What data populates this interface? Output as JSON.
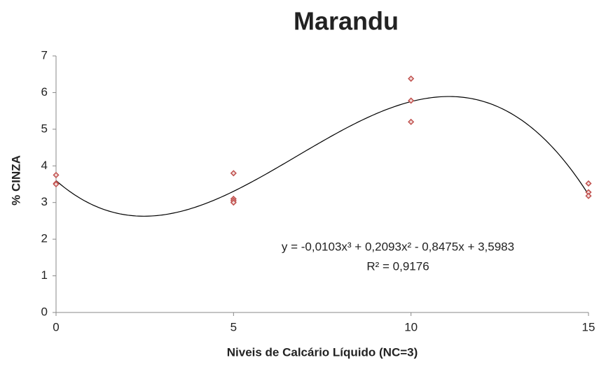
{
  "chart_data": {
    "type": "scatter",
    "title": "Marandu",
    "x_label": "Niveis de Calcário Líquido (NC=3)",
    "y_label": "% CINZA",
    "series": [
      {
        "name": null,
        "color": "#c0504d",
        "x": [
          0,
          0,
          0,
          5,
          5,
          5,
          5,
          10,
          10,
          10,
          15,
          15,
          15
        ],
        "values": [
          3.75,
          3.52,
          3.5,
          3.8,
          3.1,
          3.05,
          3.0,
          6.38,
          5.78,
          5.2,
          3.52,
          3.28,
          3.18
        ]
      }
    ],
    "trendline": {
      "type": "polynomial",
      "coefficients": [
        -0.0103,
        0.2093,
        -0.8475,
        3.5983
      ],
      "color": "#000000"
    },
    "annotations": [
      "y = -0,0103x³ + 0,2093x² - 0,8475x + 3,5983",
      "R² = 0,9176"
    ],
    "xlim": [
      0,
      15
    ],
    "xticks": [
      0,
      5,
      10,
      15
    ],
    "ylim": [
      0,
      7
    ],
    "yticks": [
      0,
      1,
      2,
      3,
      4,
      5,
      6,
      7
    ],
    "grid": false
  }
}
